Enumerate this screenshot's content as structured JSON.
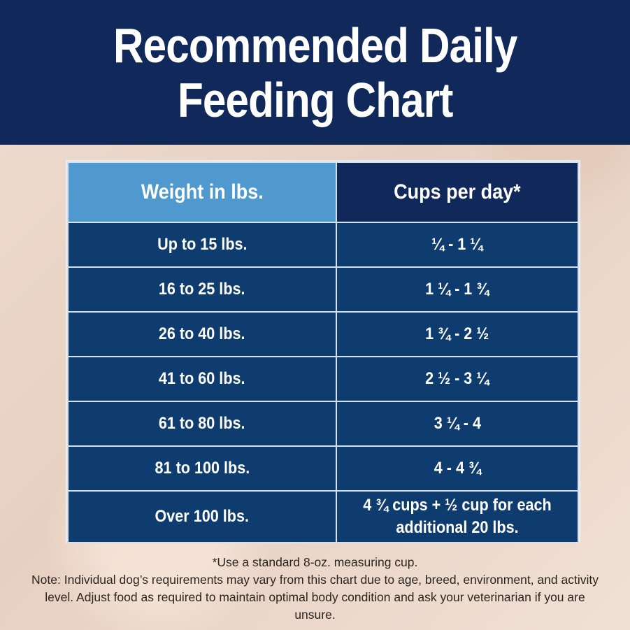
{
  "header": {
    "title_line1": "Recommended Daily",
    "title_line2": "Feeding Chart",
    "background_color": "#10295a"
  },
  "table": {
    "columns": [
      "Weight in lbs.",
      "Cups per day*"
    ],
    "header_colors": [
      "#5099cf",
      "#10295a"
    ],
    "row_color": "#0f3c6e",
    "rows": [
      {
        "weight": "Up to 15 lbs.",
        "cups": "¼ - 1 ¼"
      },
      {
        "weight": "16 to 25 lbs.",
        "cups": "1 ¼ - 1 ¾"
      },
      {
        "weight": "26 to 40 lbs.",
        "cups": "1 ¾ - 2 ½"
      },
      {
        "weight": "41 to 60 lbs.",
        "cups": "2 ½ - 3 ¼"
      },
      {
        "weight": "61 to 80 lbs.",
        "cups": "3 ¼ - 4"
      },
      {
        "weight": "81 to 100 lbs.",
        "cups": "4 - 4 ¾"
      },
      {
        "weight": "Over 100 lbs.",
        "cups": "4 ¾ cups + ½ cup for each additional 20 lbs."
      }
    ]
  },
  "footnotes": {
    "measure": "*Use a standard 8-oz. measuring cup.",
    "note": "Note: Individual dog’s requirements may vary from this chart due to age, breed, environment, and activity level. Adjust food as required to maintain optimal body condition and ask your veterinarian if you are unsure."
  }
}
